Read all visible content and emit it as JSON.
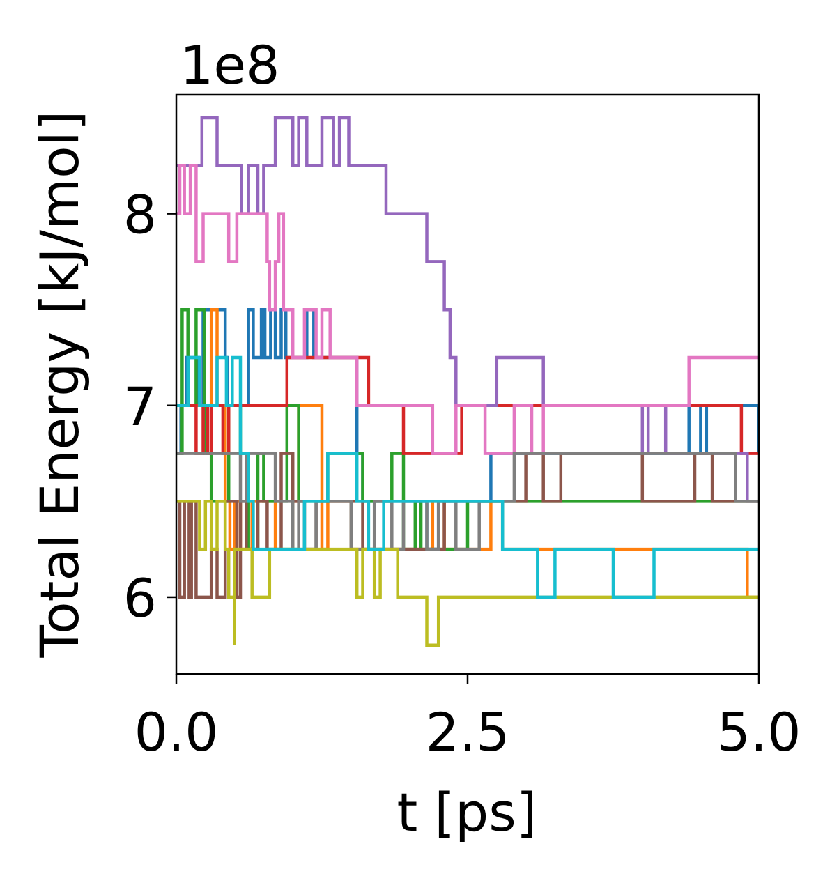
{
  "chart_data": {
    "type": "line",
    "step": true,
    "title": "",
    "xlabel": "t [ps]",
    "ylabel": "Total Energy [kJ/mol]",
    "y_offset_text": "1e8",
    "xlim": [
      0,
      5
    ],
    "ylim": [
      5.6,
      8.62
    ],
    "xticks": [
      0,
      2.5,
      5
    ],
    "xtick_labels": [
      "0.0",
      "2.5",
      "5.0"
    ],
    "yticks": [
      6,
      7,
      8
    ],
    "ytick_labels": [
      "6",
      "7",
      "8"
    ],
    "grid": false,
    "legend": "none",
    "series": [
      {
        "color": "#1f77b4",
        "x": [
          0,
          0.04,
          0.09,
          0.19,
          0.23,
          0.42,
          0.44,
          0.62,
          0.66,
          0.73,
          0.76,
          0.81,
          0.85,
          0.9,
          0.94,
          1.12,
          1.18,
          1.55,
          1.6,
          2.15,
          2.25,
          2.7,
          2.95,
          4.35,
          4.4,
          4.5,
          4.55,
          5.0
        ],
        "y": [
          6.75,
          7.0,
          7.25,
          7.0,
          7.5,
          7.25,
          7.0,
          7.5,
          7.25,
          7.5,
          7.25,
          7.5,
          7.25,
          7.5,
          7.25,
          7.5,
          7.25,
          6.75,
          6.5,
          6.25,
          6.5,
          6.75,
          6.75,
          6.75,
          7.0,
          6.75,
          7.0,
          6.75
        ]
      },
      {
        "color": "#ff7f0e",
        "x": [
          0,
          0.3,
          0.35,
          0.42,
          0.46,
          0.5,
          0.55,
          0.65,
          0.85,
          1.0,
          1.05,
          1.25,
          1.3,
          1.5,
          1.6,
          2.2,
          2.3,
          2.7,
          2.8,
          4.0,
          4.1,
          4.9,
          5.0
        ],
        "y": [
          7.0,
          7.5,
          7.0,
          6.5,
          6.25,
          6.5,
          6.25,
          6.5,
          6.25,
          6.5,
          7.0,
          6.25,
          6.5,
          6.25,
          6.25,
          6.5,
          6.25,
          6.5,
          6.25,
          6.25,
          6.25,
          6.0,
          6.0
        ]
      },
      {
        "color": "#2ca02c",
        "x": [
          0,
          0.05,
          0.1,
          0.17,
          0.24,
          0.3,
          0.45,
          0.55,
          0.62,
          0.7,
          0.75,
          0.95,
          1.05,
          1.3,
          1.6,
          1.85,
          1.95,
          2.05,
          2.1,
          2.5,
          2.75,
          3.05,
          5.0
        ],
        "y": [
          6.75,
          7.5,
          7.0,
          7.5,
          6.75,
          6.5,
          7.0,
          6.75,
          6.25,
          6.75,
          6.5,
          7.0,
          6.5,
          6.75,
          6.5,
          6.75,
          6.25,
          6.5,
          6.25,
          6.5,
          6.5,
          6.5,
          6.5
        ]
      },
      {
        "color": "#d62728",
        "x": [
          0,
          0.17,
          0.23,
          0.27,
          0.3,
          0.4,
          0.45,
          0.85,
          0.95,
          1.15,
          1.25,
          1.4,
          1.65,
          1.95,
          2.45,
          3.6,
          4.8,
          4.85,
          5.0
        ],
        "y": [
          7.0,
          6.75,
          7.0,
          6.75,
          7.0,
          6.75,
          7.0,
          7.0,
          7.25,
          7.25,
          7.25,
          7.25,
          7.0,
          6.75,
          7.0,
          7.0,
          7.0,
          6.75,
          6.75
        ]
      },
      {
        "color": "#9467bd",
        "x": [
          0,
          0.22,
          0.35,
          0.56,
          0.62,
          0.7,
          0.75,
          0.85,
          1.0,
          1.05,
          1.12,
          1.25,
          1.35,
          1.4,
          1.48,
          1.6,
          1.8,
          2.15,
          2.2,
          2.3,
          2.35,
          2.4,
          2.45,
          2.6,
          2.75,
          3.15,
          3.3,
          4.0,
          4.05,
          4.2,
          4.85,
          4.9,
          5.0
        ],
        "y": [
          8.25,
          8.5,
          8.25,
          8.0,
          8.25,
          8.0,
          8.25,
          8.5,
          8.25,
          8.5,
          8.25,
          8.5,
          8.25,
          8.5,
          8.25,
          8.25,
          8.0,
          7.75,
          7.75,
          7.5,
          7.25,
          7.0,
          7.0,
          7.0,
          7.25,
          7.0,
          7.0,
          6.75,
          7.0,
          6.75,
          6.75,
          6.5,
          6.5
        ]
      },
      {
        "color": "#8c564b",
        "x": [
          0,
          0.03,
          0.07,
          0.11,
          0.13,
          0.17,
          0.3,
          0.35,
          0.42,
          0.52,
          0.55,
          0.6,
          0.7,
          0.78,
          0.9,
          1.0,
          1.1,
          1.2,
          1.6,
          1.85,
          2.3,
          2.75,
          3.0,
          3.15,
          3.3,
          3.9,
          4.0,
          4.45,
          4.6,
          4.95,
          5.0
        ],
        "y": [
          6.5,
          6.0,
          6.5,
          6.0,
          6.5,
          6.0,
          6.25,
          6.0,
          6.5,
          6.0,
          6.5,
          6.25,
          6.5,
          6.25,
          6.75,
          6.5,
          6.25,
          6.5,
          6.25,
          6.25,
          6.5,
          6.5,
          6.75,
          6.5,
          6.75,
          6.75,
          6.5,
          6.75,
          6.5,
          6.5,
          6.5
        ]
      },
      {
        "color": "#e377c2",
        "x": [
          0,
          0.03,
          0.07,
          0.12,
          0.17,
          0.23,
          0.4,
          0.45,
          0.52,
          0.6,
          0.78,
          0.8,
          0.85,
          0.88,
          0.92,
          1.0,
          1.1,
          1.2,
          1.25,
          1.32,
          1.4,
          1.55,
          1.65,
          1.85,
          2.2,
          2.4,
          2.65,
          2.9,
          3.05,
          3.15,
          3.5,
          3.8,
          4.05,
          4.4,
          4.5,
          5.0
        ],
        "y": [
          8.0,
          8.25,
          8.0,
          8.25,
          7.75,
          8.0,
          8.0,
          7.75,
          8.0,
          8.0,
          7.75,
          7.5,
          7.75,
          8.0,
          7.5,
          7.25,
          7.5,
          7.25,
          7.5,
          7.25,
          7.25,
          7.0,
          7.0,
          7.0,
          6.75,
          7.0,
          6.75,
          7.0,
          6.75,
          7.0,
          7.0,
          7.0,
          7.0,
          7.25,
          7.25,
          7.25
        ]
      },
      {
        "color": "#7f7f7f",
        "x": [
          0,
          0.4,
          0.55,
          0.6,
          0.85,
          1.0,
          1.05,
          1.1,
          1.2,
          1.35,
          1.5,
          1.7,
          1.85,
          1.95,
          2.15,
          2.25,
          2.4,
          2.45,
          2.6,
          2.75,
          2.9,
          4.3,
          4.7,
          4.8,
          5.0
        ],
        "y": [
          6.75,
          6.75,
          6.5,
          6.75,
          6.5,
          6.25,
          6.5,
          6.25,
          6.5,
          6.5,
          6.25,
          6.5,
          6.25,
          6.5,
          6.25,
          6.5,
          6.25,
          6.25,
          6.5,
          6.5,
          6.75,
          6.75,
          6.75,
          6.5,
          6.5
        ]
      },
      {
        "color": "#bcbd22",
        "x": [
          0,
          0.15,
          0.2,
          0.25,
          0.3,
          0.35,
          0.42,
          0.45,
          0.5,
          0.5,
          0.65,
          0.8,
          0.9,
          1.2,
          1.5,
          1.55,
          1.6,
          1.7,
          1.75,
          1.9,
          2.1,
          2.15,
          2.25,
          2.3,
          2.6,
          3.0,
          5.0
        ],
        "y": [
          6.5,
          6.5,
          6.25,
          6.5,
          6.25,
          6.5,
          6.25,
          6.0,
          5.75,
          6.25,
          6.0,
          6.25,
          6.25,
          6.25,
          6.25,
          6.0,
          6.25,
          6.0,
          6.25,
          6.0,
          6.0,
          5.75,
          6.0,
          6.0,
          6.0,
          6.0,
          6.0
        ]
      },
      {
        "color": "#17becf",
        "x": [
          0,
          0.1,
          0.2,
          0.35,
          0.43,
          0.48,
          0.55,
          0.62,
          0.66,
          0.78,
          0.9,
          1.1,
          1.3,
          1.42,
          1.55,
          1.65,
          1.78,
          1.88,
          2.1,
          2.3,
          2.4,
          2.65,
          2.8,
          3.1,
          3.25,
          3.6,
          3.75,
          4.1,
          4.25,
          4.5,
          5.0
        ],
        "y": [
          7.0,
          7.25,
          7.0,
          7.25,
          7.0,
          7.25,
          6.75,
          6.5,
          6.25,
          6.25,
          6.25,
          6.5,
          6.75,
          6.75,
          6.5,
          6.25,
          6.5,
          6.5,
          6.5,
          6.5,
          6.5,
          6.5,
          6.25,
          6.0,
          6.25,
          6.25,
          6.0,
          6.25,
          6.25,
          6.25,
          6.25
        ]
      }
    ]
  }
}
